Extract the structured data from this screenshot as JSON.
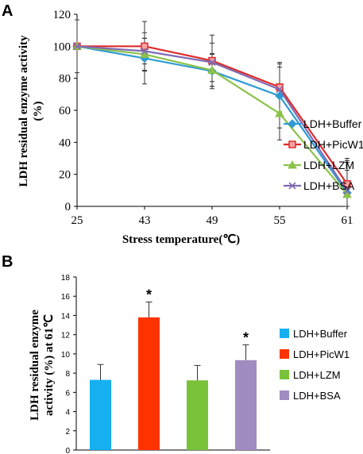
{
  "colors": {
    "buffer": "#2E9BD6",
    "picw1": "#E02A2A",
    "lzm": "#8CC24A",
    "bsa": "#7F6BB3",
    "barBuffer": "#16B0F0",
    "barPicw1": "#FF3300",
    "barLzm": "#7AC23A",
    "barBsa": "#A08CC0"
  },
  "chart_data": [
    {
      "panel": "A",
      "type": "line",
      "xlabel": "Stress temperature(℃)",
      "ylabel_line1": "LDH residual enzyme activity",
      "ylabel_line2": "(%)",
      "categories": [
        "25",
        "43",
        "49",
        "55",
        "61"
      ],
      "ylim": [
        0,
        120
      ],
      "yticks": [
        0,
        20,
        40,
        60,
        80,
        100,
        120
      ],
      "legend_position": "right",
      "series": [
        {
          "name": "LDH+Buffer",
          "colorKey": "buffer",
          "marker": "diamond",
          "values": [
            100,
            92.5,
            84.5,
            69,
            8.5
          ],
          "errors": [
            16.5,
            16,
            11,
            20,
            20
          ]
        },
        {
          "name": "LDH+PicW1",
          "colorKey": "picw1",
          "marker": "square",
          "values": [
            100,
            100,
            91,
            74.5,
            14
          ],
          "errors": [
            0,
            15.5,
            16,
            15.5,
            16
          ]
        },
        {
          "name": "LDH+LZM",
          "colorKey": "lzm",
          "marker": "triangle",
          "values": [
            100,
            95,
            85,
            58,
            7.5
          ],
          "errors": [
            0,
            10,
            10,
            16.5,
            15
          ]
        },
        {
          "name": "LDH+BSA",
          "colorKey": "bsa",
          "marker": "x",
          "values": [
            100,
            97,
            90,
            73,
            9.5
          ],
          "errors": [
            0,
            8,
            12,
            14,
            18
          ]
        }
      ]
    },
    {
      "panel": "B",
      "type": "bar",
      "ylabel_line1": "LDH residual enzyme",
      "ylabel_line2": "activity (%) at 61℃",
      "ylim": [
        0,
        18
      ],
      "yticks": [
        0,
        2,
        4,
        6,
        8,
        10,
        12,
        14,
        16,
        18
      ],
      "legend_position": "right",
      "categories": [
        "LDH+Buffer",
        "LDH+PicW1",
        "LDH+LZM",
        "LDH+BSA"
      ],
      "colorKeys": [
        "barBuffer",
        "barPicw1",
        "barLzm",
        "barBsa"
      ],
      "values": [
        7.3,
        13.8,
        7.25,
        9.35
      ],
      "errors": [
        1.6,
        1.6,
        1.55,
        1.6
      ],
      "significance": [
        "",
        "*",
        "",
        "*"
      ]
    }
  ]
}
